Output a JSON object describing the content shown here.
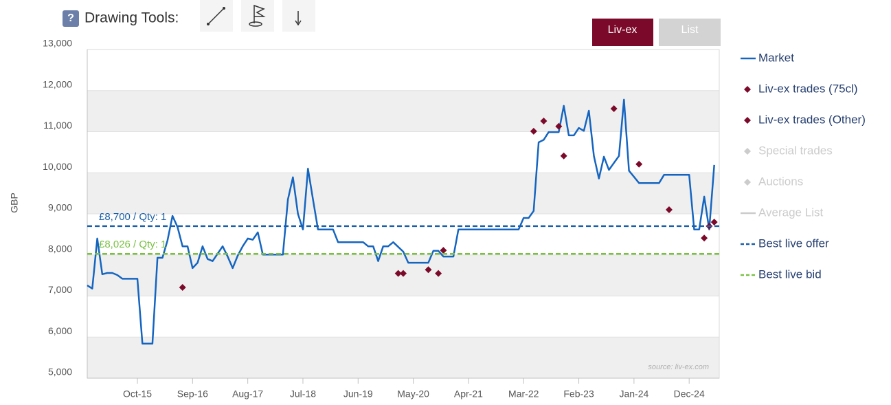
{
  "toolbar": {
    "help": "?",
    "label": "Drawing Tools:"
  },
  "tabs": [
    {
      "label": "Liv-ex",
      "active": true
    },
    {
      "label": "List",
      "active": false
    }
  ],
  "chart_data": {
    "type": "line",
    "ylabel": "GBP",
    "source": "source: liv-ex.com",
    "xlim": [
      "2014-12",
      "2025-06"
    ],
    "xticks": [
      {
        "value": "2015-10",
        "label": "Oct-15"
      },
      {
        "value": "2016-09",
        "label": "Sep-16"
      },
      {
        "value": "2017-08",
        "label": "Aug-17"
      },
      {
        "value": "2018-07",
        "label": "Jul-18"
      },
      {
        "value": "2019-06",
        "label": "Jun-19"
      },
      {
        "value": "2020-05",
        "label": "May-20"
      },
      {
        "value": "2021-04",
        "label": "Apr-21"
      },
      {
        "value": "2022-03",
        "label": "Mar-22"
      },
      {
        "value": "2023-02",
        "label": "Feb-23"
      },
      {
        "value": "2024-01",
        "label": "Jan-24"
      },
      {
        "value": "2024-12",
        "label": "Dec-24"
      }
    ],
    "ylim": [
      5000,
      13000
    ],
    "yticks": [
      {
        "value": 5000,
        "label": "5,000"
      },
      {
        "value": 6000,
        "label": "6,000"
      },
      {
        "value": 7000,
        "label": "7,000"
      },
      {
        "value": 8000,
        "label": "8,000"
      },
      {
        "value": 9000,
        "label": "9,000"
      },
      {
        "value": 10000,
        "label": "10,000"
      },
      {
        "value": 11000,
        "label": "11,000"
      },
      {
        "value": 12000,
        "label": "12,000"
      },
      {
        "value": 13000,
        "label": "13,000"
      }
    ],
    "alternate_bands": true,
    "series": [
      {
        "name": "Market",
        "kind": "line",
        "color": "#1565c0",
        "x": [
          "2014-12",
          "2015-01",
          "2015-02",
          "2015-03",
          "2015-04",
          "2015-05",
          "2015-06",
          "2015-07",
          "2015-10",
          "2015-11",
          "2016-01",
          "2016-02",
          "2016-03",
          "2016-04",
          "2016-05",
          "2016-06",
          "2016-07",
          "2016-08",
          "2016-09",
          "2016-10",
          "2016-11",
          "2016-12",
          "2017-01",
          "2017-03",
          "2017-04",
          "2017-05",
          "2017-06",
          "2017-07",
          "2017-08",
          "2017-09",
          "2017-10",
          "2017-11",
          "2018-03",
          "2018-04",
          "2018-05",
          "2018-06",
          "2018-07",
          "2018-08",
          "2018-09",
          "2018-10",
          "2019-01",
          "2019-02",
          "2019-07",
          "2019-08",
          "2019-09",
          "2019-10",
          "2019-11",
          "2019-12",
          "2020-01",
          "2020-03",
          "2020-04",
          "2020-08",
          "2020-09",
          "2020-10",
          "2020-11",
          "2021-01",
          "2021-02",
          "2022-02",
          "2022-03",
          "2022-04",
          "2022-05",
          "2022-06",
          "2022-07",
          "2022-08",
          "2022-10",
          "2022-11",
          "2022-12",
          "2023-01",
          "2023-02",
          "2023-03",
          "2023-04",
          "2023-05",
          "2023-06",
          "2023-07",
          "2023-08",
          "2023-09",
          "2023-10",
          "2023-11",
          "2023-12",
          "2024-01",
          "2024-02",
          "2024-06",
          "2024-07",
          "2024-12",
          "2025-01",
          "2025-02",
          "2025-03",
          "2025-04",
          "2025-05"
        ],
        "values": [
          7260,
          7180,
          8400,
          7530,
          7560,
          7560,
          7510,
          7420,
          7420,
          5840,
          5840,
          7930,
          7930,
          8350,
          8950,
          8680,
          8210,
          8210,
          7680,
          7810,
          8210,
          7900,
          7850,
          8210,
          7960,
          7680,
          7980,
          8210,
          8400,
          8370,
          8550,
          8010,
          8010,
          9350,
          9890,
          9000,
          8620,
          10100,
          9350,
          8620,
          8620,
          8310,
          8310,
          8210,
          8210,
          7850,
          8210,
          8210,
          8310,
          8080,
          7810,
          7810,
          8100,
          8100,
          7960,
          7960,
          8620,
          8620,
          8900,
          8900,
          9070,
          10740,
          10800,
          10990,
          10990,
          11630,
          10910,
          10910,
          11090,
          11020,
          11510,
          10410,
          9860,
          10390,
          10070,
          10240,
          10410,
          11780,
          10050,
          9900,
          9750,
          9750,
          9950,
          9950,
          8620,
          8620,
          9420,
          8620,
          10190
        ]
      },
      {
        "name": "Liv-ex trades (75cl)",
        "kind": "scatter",
        "color": "#7b0a2a",
        "x": [
          "2016-07",
          "2020-02",
          "2020-03",
          "2020-08",
          "2020-10",
          "2020-11",
          "2022-05",
          "2022-07",
          "2022-10",
          "2022-11",
          "2023-09",
          "2024-02",
          "2024-08",
          "2025-03",
          "2025-04",
          "2025-05"
        ],
        "values": [
          7210,
          7550,
          7550,
          7640,
          7550,
          8110,
          11010,
          11260,
          11130,
          10410,
          11560,
          10210,
          9100,
          8410,
          8700,
          8800
        ]
      },
      {
        "name": "Liv-ex trades (Other)",
        "kind": "scatter",
        "color": "#7b0a2a"
      },
      {
        "name": "Special trades",
        "kind": "scatter",
        "color": "#cccccc",
        "visible": false
      },
      {
        "name": "Auctions",
        "kind": "scatter",
        "color": "#cccccc",
        "visible": false
      },
      {
        "name": "Average List",
        "kind": "line",
        "color": "#cccccc",
        "visible": false
      },
      {
        "name": "Best live offer",
        "kind": "hline",
        "color": "#1a5fa8",
        "dashed": true,
        "value": 8700,
        "label": "£8,700 / Qty: 1"
      },
      {
        "name": "Best live bid",
        "kind": "hline",
        "color": "#7ac143",
        "dashed": true,
        "value": 8026,
        "label": "£8,026 / Qty: 1"
      }
    ]
  }
}
